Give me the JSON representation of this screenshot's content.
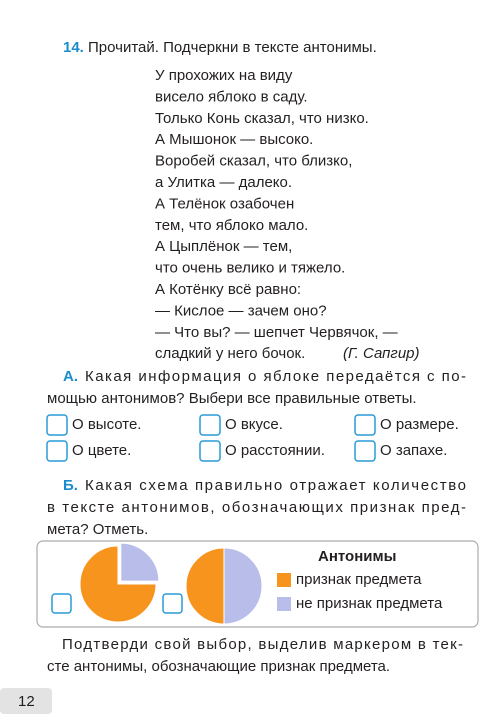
{
  "task": {
    "number": "14.",
    "instruction": "Прочитай. Подчеркни в тексте антонимы."
  },
  "poem": {
    "lines": [
      "У прохожих на виду",
      "висело яблоко в саду.",
      "Только Конь сказал, что низко.",
      "А Мышонок — высоко.",
      "Воробей сказал, что близко,",
      "а Улитка — далеко.",
      "А Телёнок озабочен",
      "тем, что яблоко мало.",
      "А Цыплёнок — тем,",
      "что очень велико и тяжело.",
      "А Котёнку всё равно:",
      "— Кислое — зачем оно?",
      "— Что вы? — шепчет Червячок, —",
      "сладкий у него бочок."
    ],
    "author": "(Г. Сапгир)"
  },
  "part_a": {
    "label": "А.",
    "question_lines": [
      "Какая информация о яблоке передаётся с по-",
      "мощью антонимов? Выбери все правильные ответы."
    ],
    "options": [
      "О высоте.",
      "О вкусе.",
      "О размере.",
      "О цвете.",
      "О расстоянии.",
      "О запахе."
    ]
  },
  "part_b": {
    "label": "Б.",
    "question_lines": [
      "Какая схема правильно отражает количество",
      "в тексте антонимов, обозначающих признак пред-",
      "мета? Отметь."
    ],
    "legend_title": "Антонимы",
    "legend": [
      "признак предмета",
      "не признак предмета"
    ],
    "legend_colors": [
      "#f7941d",
      "#b8bdea"
    ],
    "schemes": [
      {
        "values": [
          75,
          25
        ]
      },
      {
        "values": [
          50,
          50
        ]
      }
    ]
  },
  "footer_lines": [
    "Подтверди свой выбор, выделив маркером в тек-",
    "сте антонимы, обозначающие признак предмета."
  ],
  "page_number": "12"
}
